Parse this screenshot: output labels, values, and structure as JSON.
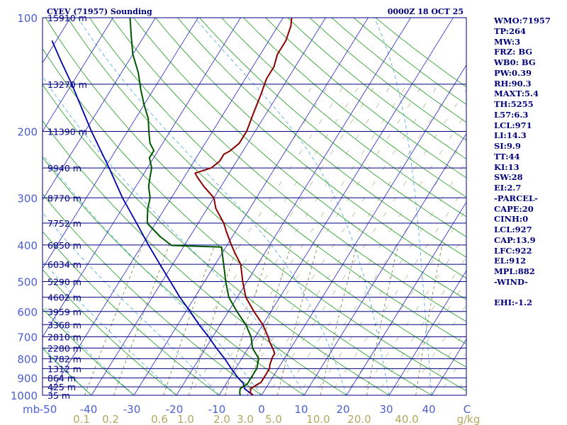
{
  "header": {
    "title": "CYEV (71957) Sounding",
    "time": "0000Z 18 OCT 25"
  },
  "side_panel": {
    "lines": [
      "WMO:71957",
      "TP:264",
      "MW:3",
      "FRZ: BG",
      "WB0: BG",
      "PW:0.39",
      "RH:90.3",
      "MAXT:5.4",
      "TH:5255",
      "L57:6.3",
      "LCL:971",
      "LI:14.3",
      "SI:9.9",
      "TT:44",
      "KI:13",
      "SW:28",
      "EI:2.7",
      "-PARCEL-",
      "CAPE:20",
      "CINH:0",
      "LCL:927",
      "CAP:13.9",
      "LFC:922",
      "EL:912",
      "MPL:882",
      "-WIND-",
      "",
      "EHI:-1.2"
    ]
  },
  "colors": {
    "isobar": "#000080",
    "isotherm": "#3a3ac8",
    "dry_adiabat": "#1a9a1a",
    "moist_adiabat": "#44aadd",
    "mixing_ratio": "#7a7a3a",
    "temperature": "#8b0000",
    "dewpoint": "#005500",
    "parcel": "#0000aa",
    "label_blue": "#4a5fd0",
    "label_olive": "#b3a860",
    "label_dark": "#000080"
  },
  "chart_data": {
    "type": "skew-t",
    "pressure_levels": [
      100,
      200,
      300,
      400,
      500,
      600,
      700,
      800,
      900,
      1000
    ],
    "pressure_unit": "mb",
    "height_labels": [
      {
        "p": 100,
        "label": "15910 m"
      },
      {
        "p": 150,
        "label": "13270 m"
      },
      {
        "p": 200,
        "label": "11390 m"
      },
      {
        "p": 250,
        "label": "9940 m"
      },
      {
        "p": 300,
        "label": "8770 m"
      },
      {
        "p": 350,
        "label": "7752 m"
      },
      {
        "p": 400,
        "label": "6850 m"
      },
      {
        "p": 450,
        "label": "6034 m"
      },
      {
        "p": 500,
        "label": "5290 m"
      },
      {
        "p": 550,
        "label": "4602 m"
      },
      {
        "p": 600,
        "label": "3959 m"
      },
      {
        "p": 650,
        "label": "3368 m"
      },
      {
        "p": 700,
        "label": "2810 m"
      },
      {
        "p": 750,
        "label": "2280 m"
      },
      {
        "p": 800,
        "label": "1782 m"
      },
      {
        "p": 850,
        "label": "1312 m"
      },
      {
        "p": 900,
        "label": "864 m"
      },
      {
        "p": 950,
        "label": "425 m"
      },
      {
        "p": 1000,
        "label": "35 m"
      }
    ],
    "temperature_ticks": [
      "-50",
      "-40",
      "-30",
      "-20",
      "-10",
      "0",
      "10",
      "20",
      "30",
      "40",
      "C"
    ],
    "temperature_unit": "C",
    "mixing_ratio_ticks": [
      "0.1",
      "0.2",
      "0.6",
      "1.0",
      "2.0",
      "3.0",
      "5.0",
      "10.0",
      "20.0",
      "40.0",
      "g/kg"
    ],
    "xlim": [
      -50,
      50
    ],
    "ylim": [
      1000,
      100
    ],
    "temperature_profile": [
      {
        "p": 1000,
        "t": -2
      },
      {
        "p": 985,
        "t": -3
      },
      {
        "p": 960,
        "t": -3.5
      },
      {
        "p": 935,
        "t": -2.5
      },
      {
        "p": 925,
        "t": -2
      },
      {
        "p": 880,
        "t": -2
      },
      {
        "p": 850,
        "t": -2
      },
      {
        "p": 830,
        "t": -2.5
      },
      {
        "p": 790,
        "t": -3
      },
      {
        "p": 775,
        "t": -3
      },
      {
        "p": 755,
        "t": -4
      },
      {
        "p": 720,
        "t": -6
      },
      {
        "p": 700,
        "t": -7
      },
      {
        "p": 650,
        "t": -10
      },
      {
        "p": 600,
        "t": -14
      },
      {
        "p": 550,
        "t": -18
      },
      {
        "p": 500,
        "t": -21
      },
      {
        "p": 450,
        "t": -24
      },
      {
        "p": 420,
        "t": -27
      },
      {
        "p": 400,
        "t": -29
      },
      {
        "p": 370,
        "t": -32
      },
      {
        "p": 350,
        "t": -34
      },
      {
        "p": 320,
        "t": -38
      },
      {
        "p": 300,
        "t": -40
      },
      {
        "p": 280,
        "t": -44
      },
      {
        "p": 264,
        "t": -47
      },
      {
        "p": 258,
        "t": -48
      },
      {
        "p": 250,
        "t": -45
      },
      {
        "p": 240,
        "t": -44
      },
      {
        "p": 230,
        "t": -44
      },
      {
        "p": 225,
        "t": -43
      },
      {
        "p": 215,
        "t": -42
      },
      {
        "p": 200,
        "t": -42
      },
      {
        "p": 180,
        "t": -43
      },
      {
        "p": 160,
        "t": -44
      },
      {
        "p": 145,
        "t": -45
      },
      {
        "p": 135,
        "t": -45
      },
      {
        "p": 125,
        "t": -46
      },
      {
        "p": 115,
        "t": -46
      },
      {
        "p": 105,
        "t": -47
      },
      {
        "p": 100,
        "t": -48
      }
    ],
    "dewpoint_profile": [
      {
        "p": 1000,
        "t": -5
      },
      {
        "p": 985,
        "t": -5.5
      },
      {
        "p": 960,
        "t": -6
      },
      {
        "p": 935,
        "t": -5
      },
      {
        "p": 925,
        "t": -5
      },
      {
        "p": 880,
        "t": -5
      },
      {
        "p": 850,
        "t": -5
      },
      {
        "p": 800,
        "t": -6
      },
      {
        "p": 750,
        "t": -9
      },
      {
        "p": 700,
        "t": -11
      },
      {
        "p": 650,
        "t": -14
      },
      {
        "p": 600,
        "t": -18
      },
      {
        "p": 550,
        "t": -22
      },
      {
        "p": 500,
        "t": -25
      },
      {
        "p": 450,
        "t": -28
      },
      {
        "p": 420,
        "t": -30
      },
      {
        "p": 405,
        "t": -31
      },
      {
        "p": 401,
        "t": -43
      },
      {
        "p": 380,
        "t": -47
      },
      {
        "p": 350,
        "t": -52
      },
      {
        "p": 320,
        "t": -54
      },
      {
        "p": 300,
        "t": -55
      },
      {
        "p": 280,
        "t": -57
      },
      {
        "p": 265,
        "t": -58
      },
      {
        "p": 250,
        "t": -59
      },
      {
        "p": 235,
        "t": -61
      },
      {
        "p": 225,
        "t": -61
      },
      {
        "p": 215,
        "t": -63
      },
      {
        "p": 200,
        "t": -65
      },
      {
        "p": 185,
        "t": -67
      },
      {
        "p": 170,
        "t": -70
      },
      {
        "p": 155,
        "t": -73
      },
      {
        "p": 140,
        "t": -76
      },
      {
        "p": 125,
        "t": -80
      },
      {
        "p": 112,
        "t": -83
      },
      {
        "p": 100,
        "t": -86
      }
    ],
    "parcel_profile": [
      {
        "p": 1000,
        "t": -2
      },
      {
        "p": 960,
        "t": -5
      },
      {
        "p": 930,
        "t": -6
      },
      {
        "p": 900,
        "t": -8
      },
      {
        "p": 850,
        "t": -11
      },
      {
        "p": 800,
        "t": -14
      },
      {
        "p": 750,
        "t": -17.5
      },
      {
        "p": 700,
        "t": -21
      },
      {
        "p": 650,
        "t": -25
      },
      {
        "p": 600,
        "t": -29
      },
      {
        "p": 550,
        "t": -33.5
      },
      {
        "p": 500,
        "t": -38
      },
      {
        "p": 450,
        "t": -43
      },
      {
        "p": 400,
        "t": -48.5
      },
      {
        "p": 350,
        "t": -54.5
      },
      {
        "p": 300,
        "t": -61.5
      },
      {
        "p": 250,
        "t": -69
      },
      {
        "p": 200,
        "t": -78.5
      },
      {
        "p": 150,
        "t": -90
      },
      {
        "p": 130,
        "t": -96
      },
      {
        "p": 115,
        "t": -101
      }
    ]
  }
}
